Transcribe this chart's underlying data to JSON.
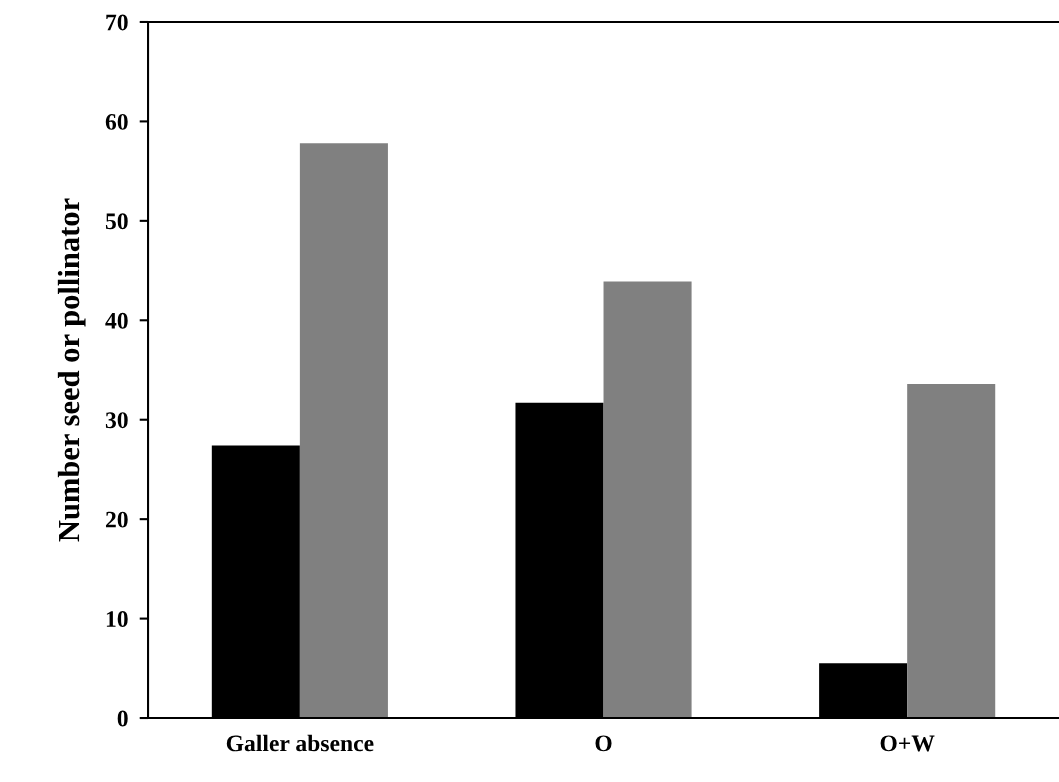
{
  "chart_data": {
    "type": "bar",
    "ylabel": "Number seed or pollinator",
    "categories": [
      "Galler absence",
      "O",
      "O+W"
    ],
    "series": [
      {
        "color": "#000000",
        "values": [
          27.4,
          31.7,
          5.5
        ]
      },
      {
        "color": "#808080",
        "values": [
          57.8,
          43.9,
          33.6
        ]
      }
    ],
    "ylim": [
      0,
      70
    ],
    "yticks": [
      0,
      10,
      20,
      30,
      40,
      50,
      60,
      70
    ],
    "grid": false,
    "legend": false
  }
}
